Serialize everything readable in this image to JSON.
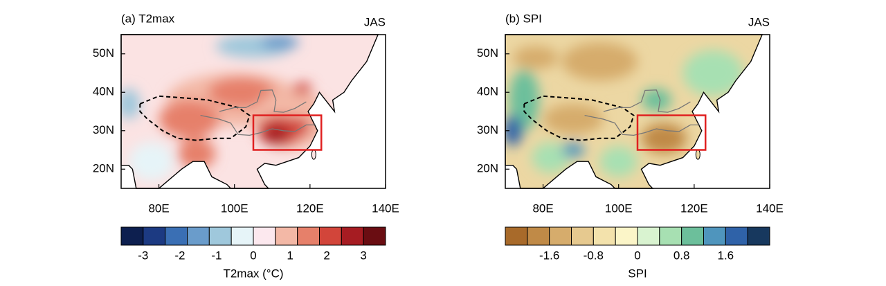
{
  "panels": [
    {
      "title": "(a) T2max",
      "season": "JAS",
      "xlim": [
        70,
        140
      ],
      "ylim": [
        15,
        55
      ],
      "xticks": [
        {
          "value": 80,
          "label": "80E"
        },
        {
          "value": 100,
          "label": "100E"
        },
        {
          "value": 120,
          "label": "120E"
        },
        {
          "value": 140,
          "label": "140E"
        }
      ],
      "yticks": [
        {
          "value": 20,
          "label": "20N"
        },
        {
          "value": 30,
          "label": "30N"
        },
        {
          "value": 40,
          "label": "40N"
        },
        {
          "value": 50,
          "label": "50N"
        }
      ],
      "colorbar": {
        "label": "T2max (°C)",
        "clim": [
          -3.6,
          3.6
        ],
        "colors": [
          "#0d1f4f",
          "#1c3a82",
          "#3a6fb4",
          "#6a9ccb",
          "#9fc8dc",
          "#e6f4f8",
          "#fce8ee",
          "#f3b8a6",
          "#e6806a",
          "#d2453a",
          "#a61c22",
          "#6a0d12"
        ],
        "ticks": [
          -3,
          -2,
          -1,
          0,
          1,
          2,
          3
        ]
      }
    },
    {
      "title": "(b) SPI",
      "season": "JAS",
      "xlim": [
        70,
        140
      ],
      "ylim": [
        15,
        55
      ],
      "xticks": [
        {
          "value": 80,
          "label": "80E"
        },
        {
          "value": 100,
          "label": "100E"
        },
        {
          "value": 120,
          "label": "120E"
        },
        {
          "value": 140,
          "label": "140E"
        }
      ],
      "yticks": [
        {
          "value": 20,
          "label": "20N"
        },
        {
          "value": 30,
          "label": "30N"
        },
        {
          "value": 40,
          "label": "40N"
        },
        {
          "value": 50,
          "label": "50N"
        }
      ],
      "colorbar": {
        "label": "SPI",
        "clim": [
          -2.4,
          2.4
        ],
        "colors": [
          "#a86a2a",
          "#c08a47",
          "#d6ac6c",
          "#e6c98f",
          "#f3e2ac",
          "#fbf5c8",
          "#d9f3d0",
          "#a7e0b2",
          "#6cbf9b",
          "#4f95bd",
          "#2f62a8",
          "#17385e"
        ],
        "ticks": [
          -1.6,
          -0.8,
          0,
          0.8,
          1.6
        ]
      }
    }
  ]
}
